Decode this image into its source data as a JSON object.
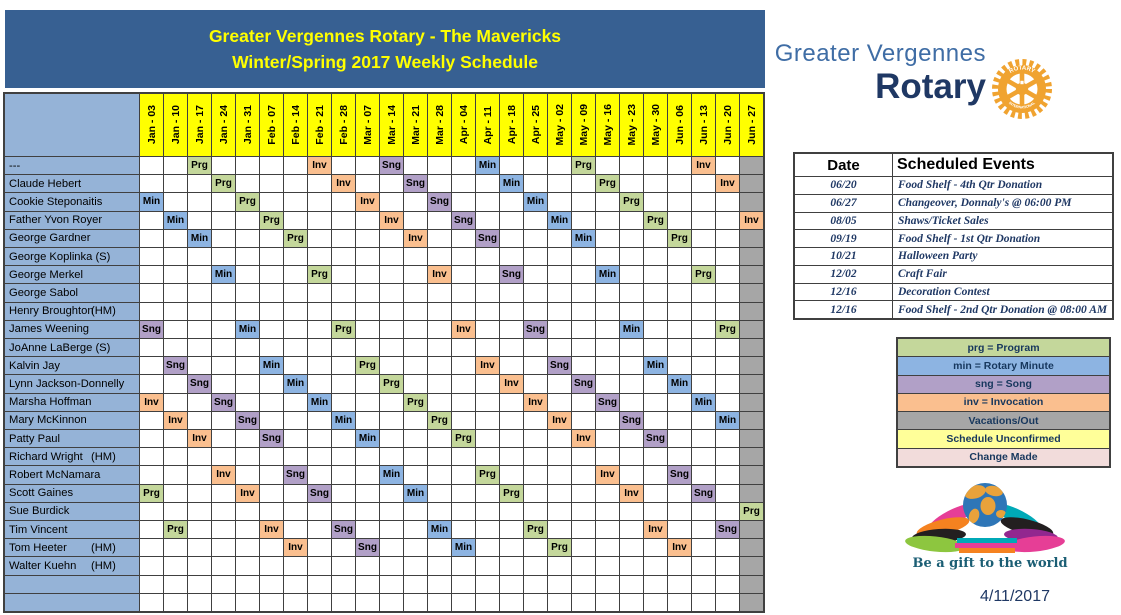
{
  "title": {
    "line1": "Greater Vergennes Rotary - The Mavericks",
    "line2": "Winter/Spring 2017 Weekly Schedule"
  },
  "schedule": {
    "columns": [
      "Jan - 03",
      "Jan - 10",
      "Jan - 17",
      "Jan - 24",
      "Jan - 31",
      "Feb - 07",
      "Feb - 14",
      "Feb - 21",
      "Feb - 28",
      "Mar - 07",
      "Mar - 14",
      "Mar - 21",
      "Mar - 28",
      "Apr - 04",
      "Apr - 11",
      "Apr - 18",
      "Apr - 25",
      "May - 02",
      "May - 09",
      "May - 16",
      "May - 23",
      "May - 30",
      "Jun - 06",
      "Jun - 13",
      "Jun - 20",
      "Jun - 27"
    ],
    "role_colors": {
      "Prg": "#C4D79B",
      "Min": "#8DB4E2",
      "Sng": "#B1A0C7",
      "Inv": "#FABF8F",
      "Out": "#A6A6A6"
    },
    "rows": [
      {
        "name": "---",
        "suffix": "",
        "cells": {
          "3": "Prg",
          "8": "Inv",
          "11": "Sng",
          "15": "Min",
          "19": "Prg",
          "24": "Inv",
          "26": "Out"
        }
      },
      {
        "name": "Claude Hebert",
        "suffix": "",
        "cells": {
          "4": "Prg",
          "9": "Inv",
          "12": "Sng",
          "16": "Min",
          "20": "Prg",
          "25": "Inv",
          "26": "Out"
        }
      },
      {
        "name": "Cookie Steponaitis",
        "suffix": "",
        "cells": {
          "1": "Min",
          "5": "Prg",
          "10": "Inv",
          "13": "Sng",
          "17": "Min",
          "21": "Prg",
          "26": "Out"
        }
      },
      {
        "name": "Father Yvon Royer",
        "suffix": "",
        "cells": {
          "2": "Min",
          "6": "Prg",
          "11": "Inv",
          "14": "Sng",
          "18": "Min",
          "22": "Prg",
          "26": "Inv"
        }
      },
      {
        "name": "George Gardner",
        "suffix": "",
        "cells": {
          "3": "Min",
          "7": "Prg",
          "12": "Inv",
          "15": "Sng",
          "19": "Min",
          "23": "Prg",
          "26": "Out"
        }
      },
      {
        "name": "George Koplinka (S)",
        "suffix": "",
        "cells": {
          "26": "Out"
        }
      },
      {
        "name": "George Merkel",
        "suffix": "",
        "cells": {
          "4": "Min",
          "8": "Prg",
          "13": "Inv",
          "16": "Sng",
          "20": "Min",
          "24": "Prg",
          "26": "Out"
        }
      },
      {
        "name": "George Sabol",
        "suffix": "",
        "cells": {
          "26": "Out"
        }
      },
      {
        "name": "Henry Broughton",
        "suffix": "(HM)",
        "cells": {
          "26": "Out"
        }
      },
      {
        "name": "James Weening",
        "suffix": "",
        "cells": {
          "1": "Sng",
          "5": "Min",
          "9": "Prg",
          "14": "Inv",
          "17": "Sng",
          "21": "Min",
          "25": "Prg",
          "26": "Out"
        }
      },
      {
        "name": "JoAnne LaBerge (S)",
        "suffix": "",
        "cells": {
          "26": "Out"
        }
      },
      {
        "name": "Kalvin Jay",
        "suffix": "",
        "cells": {
          "2": "Sng",
          "6": "Min",
          "10": "Prg",
          "15": "Inv",
          "18": "Sng",
          "22": "Min",
          "26": "Out"
        }
      },
      {
        "name": "Lynn Jackson-Donnelly",
        "suffix": "",
        "cells": {
          "3": "Sng",
          "7": "Min",
          "11": "Prg",
          "16": "Inv",
          "19": "Sng",
          "23": "Min",
          "26": "Out"
        }
      },
      {
        "name": "Marsha Hoffman",
        "suffix": "",
        "cells": {
          "1": "Inv",
          "4": "Sng",
          "8": "Min",
          "12": "Prg",
          "17": "Inv",
          "20": "Sng",
          "24": "Min",
          "26": "Out"
        }
      },
      {
        "name": "Mary McKinnon",
        "suffix": "",
        "cells": {
          "2": "Inv",
          "5": "Sng",
          "9": "Min",
          "13": "Prg",
          "18": "Inv",
          "21": "Sng",
          "25": "Min",
          "26": "Out"
        }
      },
      {
        "name": "Patty Paul",
        "suffix": "",
        "cells": {
          "3": "Inv",
          "6": "Sng",
          "10": "Min",
          "14": "Prg",
          "19": "Inv",
          "22": "Sng",
          "26": "Out"
        }
      },
      {
        "name": "Richard Wright",
        "suffix": "(HM)",
        "cells": {
          "26": "Out"
        }
      },
      {
        "name": "Robert McNamara",
        "suffix": "",
        "cells": {
          "4": "Inv",
          "7": "Sng",
          "11": "Min",
          "15": "Prg",
          "20": "Inv",
          "23": "Sng",
          "26": "Out"
        }
      },
      {
        "name": "Scott Gaines",
        "suffix": "",
        "cells": {
          "1": "Prg",
          "5": "Inv",
          "8": "Sng",
          "12": "Min",
          "16": "Prg",
          "21": "Inv",
          "24": "Sng",
          "26": "Out"
        }
      },
      {
        "name": "Sue Burdick",
        "suffix": "",
        "cells": {
          "26": "Prg"
        }
      },
      {
        "name": "Tim Vincent",
        "suffix": "",
        "cells": {
          "2": "Prg",
          "6": "Inv",
          "9": "Sng",
          "13": "Min",
          "17": "Prg",
          "22": "Inv",
          "25": "Sng",
          "26": "Out"
        }
      },
      {
        "name": "Tom Heeter",
        "suffix": "(HM)",
        "cells": {
          "7": "Inv",
          "10": "Sng",
          "14": "Min",
          "18": "Prg",
          "23": "Inv",
          "26": "Out"
        }
      },
      {
        "name": "Walter Kuehn",
        "suffix": "(HM)",
        "cells": {
          "26": "Out"
        }
      },
      {
        "name": "",
        "suffix": "",
        "cells": {
          "26": "Out"
        }
      },
      {
        "name": "",
        "suffix": "",
        "cells": {
          "26": "Out"
        }
      }
    ]
  },
  "logo": {
    "line1": "Greater Vergennes",
    "line2": "Rotary",
    "wheel_top": "ROTARY",
    "wheel_bottom": "INTERNATIONAL"
  },
  "events": {
    "headers": [
      "Date",
      "Scheduled Events"
    ],
    "rows": [
      [
        "06/20",
        "Food Shelf - 4th Qtr Donation"
      ],
      [
        "06/27",
        "Changeover, Donnaly's @ 06:00 PM"
      ],
      [
        "08/05",
        "Shaws/Ticket Sales"
      ],
      [
        "09/19",
        "Food Shelf - 1st Qtr Donation"
      ],
      [
        "10/21",
        "Halloween Party"
      ],
      [
        "12/02",
        "Craft Fair"
      ],
      [
        "12/16",
        "Decoration Contest"
      ],
      [
        "12/16",
        "Food Shelf - 2nd Qtr Donation @ 08:00 AM"
      ]
    ]
  },
  "legend": [
    {
      "label": "prg = Program",
      "color": "#C4D79B"
    },
    {
      "label": "min = Rotary Minute",
      "color": "#8DB4E2"
    },
    {
      "label": "sng = Song",
      "color": "#B1A0C7"
    },
    {
      "label": "inv = Invocation",
      "color": "#FABF8F"
    },
    {
      "label": "Vacations/Out",
      "color": "#A6A6A6"
    },
    {
      "label": "Schedule Unconfirmed",
      "color": "#FFFF99"
    },
    {
      "label": "Change Made",
      "color": "#F2DCDB"
    }
  ],
  "footer": {
    "tagline": "Be a gift to the world",
    "date": "4/11/2017"
  },
  "colors": {
    "banner_bg": "#376092",
    "banner_text": "#FFFF00",
    "header_bg": "#FFFF00",
    "name_col_bg": "#95B3D7",
    "grid_line": "#404040",
    "events_text": "#1F3864",
    "wheel_gold": "#F0A330",
    "logo_blue_light": "#3F6DA5",
    "logo_blue_dark": "#1F3864"
  }
}
